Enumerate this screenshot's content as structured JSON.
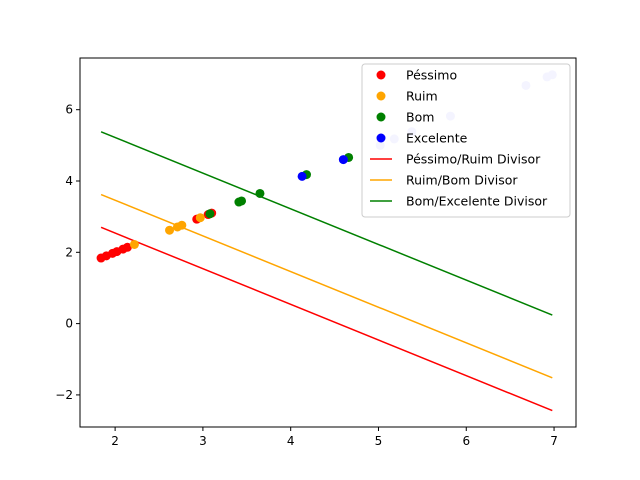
{
  "chart_data": {
    "type": "scatter",
    "title": "",
    "xlabel": "",
    "ylabel": "",
    "xlim": [
      1.6,
      7.25
    ],
    "ylim": [
      -2.9,
      7.45
    ],
    "xticks": [
      2,
      3,
      4,
      5,
      6,
      7
    ],
    "yticks": [
      -2,
      0,
      2,
      4,
      6
    ],
    "grid": false,
    "legend_position": "top-right",
    "series": [
      {
        "name": "Péssimo",
        "type": "scatter",
        "color": "#ff0000",
        "points": [
          [
            1.84,
            1.84
          ],
          [
            1.9,
            1.9
          ],
          [
            1.97,
            1.97
          ],
          [
            2.02,
            2.02
          ],
          [
            2.09,
            2.09
          ],
          [
            2.14,
            2.14
          ],
          [
            2.93,
            2.93
          ],
          [
            3.06,
            3.06
          ],
          [
            3.1,
            3.1
          ]
        ]
      },
      {
        "name": "Ruim",
        "type": "scatter",
        "color": "#ffa500",
        "points": [
          [
            2.22,
            2.22
          ],
          [
            2.62,
            2.62
          ],
          [
            2.71,
            2.71
          ],
          [
            2.76,
            2.76
          ],
          [
            2.97,
            2.97
          ]
        ]
      },
      {
        "name": "Bom",
        "type": "scatter",
        "color": "#008000",
        "points": [
          [
            3.08,
            3.08
          ],
          [
            3.41,
            3.41
          ],
          [
            3.44,
            3.44
          ],
          [
            3.65,
            3.65
          ],
          [
            4.18,
            4.18
          ],
          [
            4.66,
            4.66
          ]
        ]
      },
      {
        "name": "Excelente",
        "type": "scatter",
        "color": "#0000ff",
        "points": [
          [
            4.13,
            4.13
          ],
          [
            4.6,
            4.6
          ]
        ]
      },
      {
        "name": "",
        "type": "scatter",
        "color": "#c8c8ff",
        "points": [
          [
            5.02,
            5.0
          ],
          [
            5.18,
            5.18
          ],
          [
            5.38,
            5.38
          ],
          [
            5.82,
            5.82
          ],
          [
            6.68,
            6.68
          ],
          [
            6.92,
            6.92
          ],
          [
            6.98,
            6.98
          ]
        ]
      },
      {
        "name": "Péssimo/Ruim Divisor",
        "type": "line",
        "color": "#ff0000",
        "x": [
          1.84,
          6.98
        ],
        "y": [
          2.7,
          -2.44
        ]
      },
      {
        "name": "Ruim/Bom Divisor",
        "type": "line",
        "color": "#ffa500",
        "x": [
          1.84,
          6.98
        ],
        "y": [
          3.62,
          -1.52
        ]
      },
      {
        "name": "Bom/Excelente Divisor",
        "type": "line",
        "color": "#008000",
        "x": [
          1.84,
          6.98
        ],
        "y": [
          5.38,
          0.24
        ]
      }
    ]
  }
}
